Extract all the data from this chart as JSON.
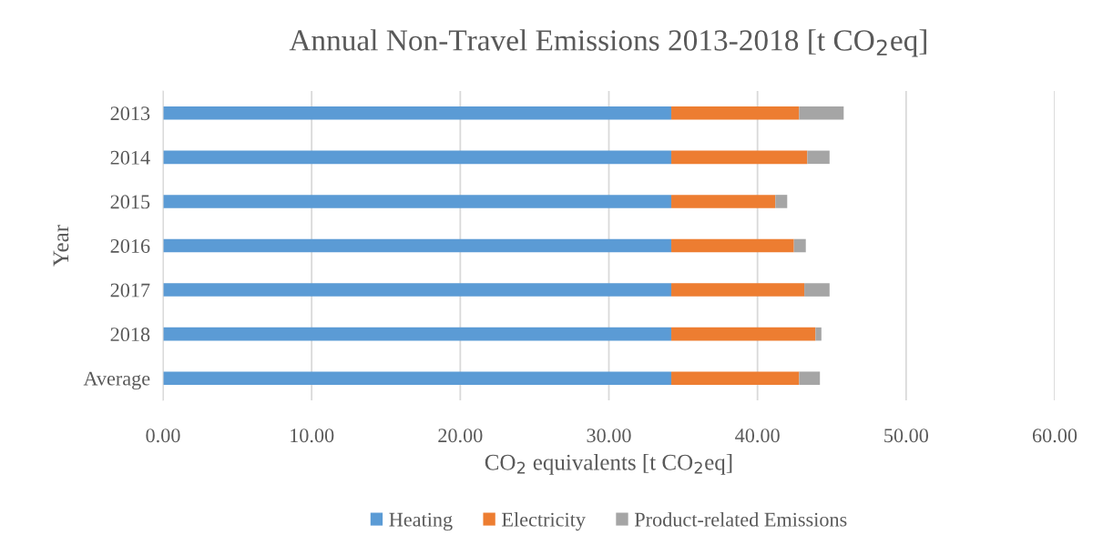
{
  "chart_data": {
    "type": "bar",
    "orientation": "horizontal",
    "stacked": true,
    "title": "Annual Non-Travel Emissions 2013-2018 [t CO$_{2}$eq]",
    "xlabel": "CO$_{2}$ equivalents [t CO$_{2}$eq]",
    "ylabel": "Year",
    "categories": [
      "2013",
      "2014",
      "2015",
      "2016",
      "2017",
      "2018",
      "Average"
    ],
    "series": [
      {
        "name": "Heating",
        "color": "#5b9bd5",
        "values": [
          34.2,
          34.2,
          34.2,
          34.2,
          34.2,
          34.2,
          34.2
        ]
      },
      {
        "name": "Electricity",
        "color": "#ed7d31",
        "values": [
          8.6,
          9.15,
          7.0,
          8.25,
          8.95,
          9.7,
          8.6
        ]
      },
      {
        "name": "Product-related Emissions",
        "color": "#a5a5a5",
        "values": [
          3.0,
          1.5,
          0.8,
          0.8,
          1.7,
          0.4,
          1.4
        ]
      }
    ],
    "xlim": [
      0,
      60
    ],
    "xticks": [
      {
        "value": 0,
        "label": "0.00"
      },
      {
        "value": 10,
        "label": "10.00"
      },
      {
        "value": 20,
        "label": "20.00"
      },
      {
        "value": 30,
        "label": "30.00"
      },
      {
        "value": 40,
        "label": "40.00"
      },
      {
        "value": 50,
        "label": "50.00"
      },
      {
        "value": 60,
        "label": "60.00"
      }
    ],
    "grid": "x",
    "legend": "bottom"
  }
}
